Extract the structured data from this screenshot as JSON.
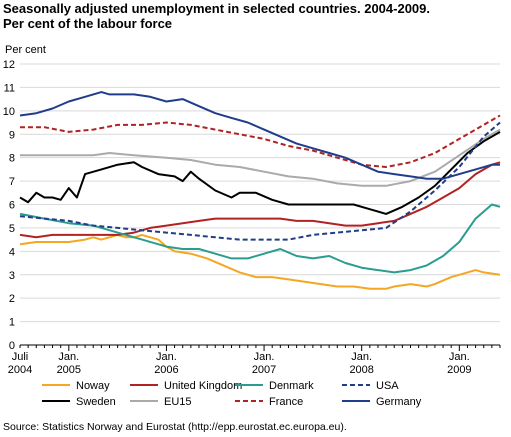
{
  "title_line1": "Seasonally adjusted unemployment in selected countries. 2004-2009.",
  "title_line2": "Per cent of the labour force",
  "unit_label": "Per cent",
  "source": "Source: Statistics Norway and Eurostat (http://epp.eurostat.ec.europa.eu).",
  "chart_data": {
    "type": "line",
    "title": "Seasonally adjusted unemployment in selected countries. 2004-2009. Per cent of the labour force",
    "ylabel": "Per cent",
    "xlabel": "",
    "ylim": [
      0,
      12
    ],
    "yticks": [
      0,
      1,
      2,
      3,
      4,
      5,
      6,
      7,
      8,
      9,
      10,
      11,
      12
    ],
    "xrange": [
      "2004-07",
      "2009-06"
    ],
    "xticks": [
      {
        "month": "2004-07",
        "line1": "Juli",
        "line2": "2004"
      },
      {
        "month": "2005-01",
        "line1": "Jan.",
        "line2": "2005"
      },
      {
        "month": "2006-01",
        "line1": "Jan.",
        "line2": "2006"
      },
      {
        "month": "2007-01",
        "line1": "Jan.",
        "line2": "2007"
      },
      {
        "month": "2008-01",
        "line1": "Jan.",
        "line2": "2008"
      },
      {
        "month": "2009-01",
        "line1": "Jan.",
        "line2": "2009"
      }
    ],
    "grid": true,
    "legend_position": "bottom",
    "series": [
      {
        "name": "Noway",
        "color": "#f5a623",
        "dashed": false,
        "points": [
          [
            "2004-07",
            4.3
          ],
          [
            "2004-09",
            4.4
          ],
          [
            "2004-11",
            4.4
          ],
          [
            "2005-01",
            4.4
          ],
          [
            "2005-03",
            4.5
          ],
          [
            "2005-04",
            4.6
          ],
          [
            "2005-05",
            4.5
          ],
          [
            "2005-06",
            4.6
          ],
          [
            "2005-07",
            4.7
          ],
          [
            "2005-08",
            4.6
          ],
          [
            "2005-09",
            4.6
          ],
          [
            "2005-10",
            4.7
          ],
          [
            "2005-11",
            4.6
          ],
          [
            "2005-12",
            4.5
          ],
          [
            "2006-01",
            4.2
          ],
          [
            "2006-02",
            4.0
          ],
          [
            "2006-04",
            3.9
          ],
          [
            "2006-06",
            3.7
          ],
          [
            "2006-08",
            3.4
          ],
          [
            "2006-10",
            3.1
          ],
          [
            "2006-12",
            2.9
          ],
          [
            "2007-02",
            2.9
          ],
          [
            "2007-04",
            2.8
          ],
          [
            "2007-06",
            2.7
          ],
          [
            "2007-08",
            2.6
          ],
          [
            "2007-10",
            2.5
          ],
          [
            "2007-12",
            2.5
          ],
          [
            "2008-02",
            2.4
          ],
          [
            "2008-04",
            2.4
          ],
          [
            "2008-05",
            2.5
          ],
          [
            "2008-07",
            2.6
          ],
          [
            "2008-09",
            2.5
          ],
          [
            "2008-10",
            2.6
          ],
          [
            "2008-12",
            2.9
          ],
          [
            "2009-02",
            3.1
          ],
          [
            "2009-03",
            3.2
          ],
          [
            "2009-04",
            3.1
          ],
          [
            "2009-06",
            3.0
          ]
        ]
      },
      {
        "name": "Sweden",
        "color": "#000000",
        "dashed": false,
        "points": [
          [
            "2004-07",
            6.3
          ],
          [
            "2004-08",
            6.1
          ],
          [
            "2004-09",
            6.5
          ],
          [
            "2004-10",
            6.3
          ],
          [
            "2004-11",
            6.3
          ],
          [
            "2004-12",
            6.2
          ],
          [
            "2005-01",
            6.7
          ],
          [
            "2005-02",
            6.3
          ],
          [
            "2005-03",
            7.3
          ],
          [
            "2005-05",
            7.5
          ],
          [
            "2005-07",
            7.7
          ],
          [
            "2005-09",
            7.8
          ],
          [
            "2005-10",
            7.6
          ],
          [
            "2005-12",
            7.3
          ],
          [
            "2006-02",
            7.2
          ],
          [
            "2006-03",
            7.0
          ],
          [
            "2006-04",
            7.4
          ],
          [
            "2006-05",
            7.1
          ],
          [
            "2006-07",
            6.6
          ],
          [
            "2006-09",
            6.3
          ],
          [
            "2006-10",
            6.5
          ],
          [
            "2006-12",
            6.5
          ],
          [
            "2007-02",
            6.2
          ],
          [
            "2007-04",
            6.0
          ],
          [
            "2007-06",
            6.0
          ],
          [
            "2007-08",
            6.0
          ],
          [
            "2007-10",
            6.0
          ],
          [
            "2007-12",
            6.0
          ],
          [
            "2008-02",
            5.8
          ],
          [
            "2008-04",
            5.6
          ],
          [
            "2008-06",
            5.9
          ],
          [
            "2008-08",
            6.3
          ],
          [
            "2008-10",
            6.8
          ],
          [
            "2008-12",
            7.5
          ],
          [
            "2009-02",
            8.2
          ],
          [
            "2009-04",
            8.7
          ],
          [
            "2009-06",
            9.1
          ]
        ]
      },
      {
        "name": "United Kingdom",
        "color": "#b22222",
        "dashed": false,
        "points": [
          [
            "2004-07",
            4.7
          ],
          [
            "2004-09",
            4.6
          ],
          [
            "2004-11",
            4.7
          ],
          [
            "2005-01",
            4.7
          ],
          [
            "2005-03",
            4.7
          ],
          [
            "2005-05",
            4.7
          ],
          [
            "2005-07",
            4.7
          ],
          [
            "2005-09",
            4.8
          ],
          [
            "2005-11",
            5.0
          ],
          [
            "2006-01",
            5.1
          ],
          [
            "2006-03",
            5.2
          ],
          [
            "2006-05",
            5.3
          ],
          [
            "2006-07",
            5.4
          ],
          [
            "2006-09",
            5.4
          ],
          [
            "2006-11",
            5.4
          ],
          [
            "2007-01",
            5.4
          ],
          [
            "2007-03",
            5.4
          ],
          [
            "2007-05",
            5.3
          ],
          [
            "2007-07",
            5.3
          ],
          [
            "2007-09",
            5.2
          ],
          [
            "2007-11",
            5.1
          ],
          [
            "2008-01",
            5.1
          ],
          [
            "2008-03",
            5.2
          ],
          [
            "2008-05",
            5.3
          ],
          [
            "2008-07",
            5.6
          ],
          [
            "2008-09",
            5.9
          ],
          [
            "2008-11",
            6.3
          ],
          [
            "2009-01",
            6.7
          ],
          [
            "2009-03",
            7.3
          ],
          [
            "2009-05",
            7.7
          ],
          [
            "2009-06",
            7.8
          ]
        ]
      },
      {
        "name": "EU15",
        "color": "#aaaaaa",
        "dashed": false,
        "points": [
          [
            "2004-07",
            8.1
          ],
          [
            "2004-10",
            8.1
          ],
          [
            "2005-01",
            8.1
          ],
          [
            "2005-04",
            8.1
          ],
          [
            "2005-06",
            8.2
          ],
          [
            "2005-09",
            8.1
          ],
          [
            "2006-01",
            8.0
          ],
          [
            "2006-04",
            7.9
          ],
          [
            "2006-07",
            7.7
          ],
          [
            "2006-10",
            7.6
          ],
          [
            "2007-01",
            7.4
          ],
          [
            "2007-04",
            7.2
          ],
          [
            "2007-07",
            7.1
          ],
          [
            "2007-10",
            6.9
          ],
          [
            "2008-01",
            6.8
          ],
          [
            "2008-04",
            6.8
          ],
          [
            "2008-07",
            7.0
          ],
          [
            "2008-10",
            7.4
          ],
          [
            "2009-01",
            8.1
          ],
          [
            "2009-04",
            8.8
          ],
          [
            "2009-06",
            9.2
          ]
        ]
      },
      {
        "name": "Denmark",
        "color": "#2a9d8f",
        "dashed": false,
        "points": [
          [
            "2004-07",
            5.6
          ],
          [
            "2004-10",
            5.4
          ],
          [
            "2005-01",
            5.2
          ],
          [
            "2005-04",
            5.1
          ],
          [
            "2005-07",
            4.8
          ],
          [
            "2005-10",
            4.5
          ],
          [
            "2006-01",
            4.2
          ],
          [
            "2006-03",
            4.1
          ],
          [
            "2006-05",
            4.1
          ],
          [
            "2006-07",
            3.9
          ],
          [
            "2006-09",
            3.7
          ],
          [
            "2006-11",
            3.7
          ],
          [
            "2007-01",
            3.9
          ],
          [
            "2007-03",
            4.1
          ],
          [
            "2007-05",
            3.8
          ],
          [
            "2007-07",
            3.7
          ],
          [
            "2007-09",
            3.8
          ],
          [
            "2007-11",
            3.5
          ],
          [
            "2008-01",
            3.3
          ],
          [
            "2008-03",
            3.2
          ],
          [
            "2008-05",
            3.1
          ],
          [
            "2008-07",
            3.2
          ],
          [
            "2008-09",
            3.4
          ],
          [
            "2008-11",
            3.8
          ],
          [
            "2009-01",
            4.4
          ],
          [
            "2009-03",
            5.4
          ],
          [
            "2009-05",
            6.0
          ],
          [
            "2009-06",
            5.9
          ]
        ]
      },
      {
        "name": "France",
        "color": "#b22222",
        "dashed": true,
        "points": [
          [
            "2004-07",
            9.3
          ],
          [
            "2004-10",
            9.3
          ],
          [
            "2005-01",
            9.1
          ],
          [
            "2005-04",
            9.2
          ],
          [
            "2005-07",
            9.4
          ],
          [
            "2005-10",
            9.4
          ],
          [
            "2006-01",
            9.5
          ],
          [
            "2006-04",
            9.4
          ],
          [
            "2006-07",
            9.2
          ],
          [
            "2006-10",
            9.0
          ],
          [
            "2007-01",
            8.8
          ],
          [
            "2007-04",
            8.5
          ],
          [
            "2007-07",
            8.3
          ],
          [
            "2007-10",
            8.0
          ],
          [
            "2008-01",
            7.7
          ],
          [
            "2008-04",
            7.6
          ],
          [
            "2008-07",
            7.8
          ],
          [
            "2008-10",
            8.2
          ],
          [
            "2009-01",
            8.8
          ],
          [
            "2009-04",
            9.4
          ],
          [
            "2009-06",
            9.8
          ]
        ]
      },
      {
        "name": "USA",
        "color": "#1f3d8a",
        "dashed": true,
        "points": [
          [
            "2004-07",
            5.5
          ],
          [
            "2004-10",
            5.4
          ],
          [
            "2005-01",
            5.3
          ],
          [
            "2005-04",
            5.1
          ],
          [
            "2005-07",
            5.0
          ],
          [
            "2005-10",
            4.9
          ],
          [
            "2006-01",
            4.8
          ],
          [
            "2006-04",
            4.7
          ],
          [
            "2006-07",
            4.6
          ],
          [
            "2006-10",
            4.5
          ],
          [
            "2007-01",
            4.5
          ],
          [
            "2007-04",
            4.5
          ],
          [
            "2007-07",
            4.7
          ],
          [
            "2007-10",
            4.8
          ],
          [
            "2008-01",
            4.9
          ],
          [
            "2008-04",
            5.0
          ],
          [
            "2008-07",
            5.7
          ],
          [
            "2008-10",
            6.6
          ],
          [
            "2009-01",
            7.6
          ],
          [
            "2009-04",
            8.9
          ],
          [
            "2009-06",
            9.5
          ]
        ]
      },
      {
        "name": "Germany",
        "color": "#1f3d8a",
        "dashed": false,
        "points": [
          [
            "2004-07",
            9.8
          ],
          [
            "2004-09",
            9.9
          ],
          [
            "2004-11",
            10.1
          ],
          [
            "2005-01",
            10.4
          ],
          [
            "2005-03",
            10.6
          ],
          [
            "2005-05",
            10.8
          ],
          [
            "2005-06",
            10.7
          ],
          [
            "2005-09",
            10.7
          ],
          [
            "2005-11",
            10.6
          ],
          [
            "2006-01",
            10.4
          ],
          [
            "2006-03",
            10.5
          ],
          [
            "2006-05",
            10.2
          ],
          [
            "2006-07",
            9.9
          ],
          [
            "2006-09",
            9.7
          ],
          [
            "2006-11",
            9.5
          ],
          [
            "2007-01",
            9.2
          ],
          [
            "2007-03",
            8.9
          ],
          [
            "2007-05",
            8.6
          ],
          [
            "2007-07",
            8.4
          ],
          [
            "2007-09",
            8.2
          ],
          [
            "2007-11",
            8.0
          ],
          [
            "2008-01",
            7.7
          ],
          [
            "2008-03",
            7.4
          ],
          [
            "2008-05",
            7.3
          ],
          [
            "2008-07",
            7.2
          ],
          [
            "2008-09",
            7.1
          ],
          [
            "2008-11",
            7.1
          ],
          [
            "2009-01",
            7.3
          ],
          [
            "2009-03",
            7.5
          ],
          [
            "2009-05",
            7.7
          ],
          [
            "2009-06",
            7.7
          ]
        ]
      }
    ]
  }
}
